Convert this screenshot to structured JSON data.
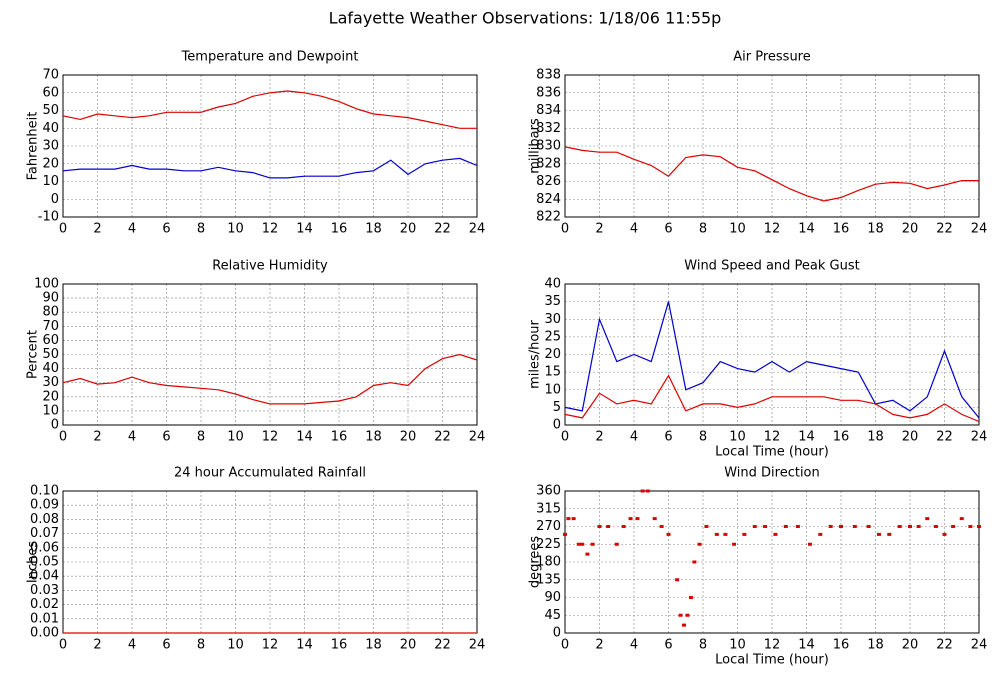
{
  "title": "Lafayette Weather Observations: 1/18/06 11:55p",
  "chart_data": [
    {
      "type": "line",
      "title": "Temperature and Dewpoint",
      "ylabel": "Fahrenheit",
      "x": [
        0,
        1,
        2,
        3,
        4,
        5,
        6,
        7,
        8,
        9,
        10,
        11,
        12,
        13,
        14,
        15,
        16,
        17,
        18,
        19,
        20,
        21,
        22,
        23,
        24
      ],
      "series": [
        {
          "color": "#dd0000",
          "values": [
            47,
            45,
            48,
            47,
            46,
            47,
            49,
            49,
            49,
            52,
            54,
            58,
            60,
            61,
            60,
            58,
            55,
            51,
            48,
            47,
            46,
            44,
            42,
            40,
            40
          ]
        },
        {
          "color": "#0000cc",
          "values": [
            16,
            17,
            17,
            17,
            19,
            17,
            17,
            16,
            16,
            18,
            16,
            15,
            12,
            12,
            13,
            13,
            13,
            15,
            16,
            22,
            14,
            20,
            22,
            23,
            19
          ]
        }
      ],
      "xlim": [
        0,
        24
      ],
      "xticks": [
        0,
        2,
        4,
        6,
        8,
        10,
        12,
        14,
        16,
        18,
        20,
        22,
        24
      ],
      "ylim": [
        -10,
        70
      ],
      "yticks": [
        -10,
        0,
        10,
        20,
        30,
        40,
        50,
        60,
        70
      ],
      "grid": true
    },
    {
      "type": "line",
      "title": "Air Pressure",
      "ylabel": "millibars",
      "x": [
        0,
        1,
        2,
        3,
        4,
        5,
        6,
        7,
        8,
        9,
        10,
        11,
        12,
        13,
        14,
        15,
        16,
        17,
        18,
        19,
        20,
        21,
        22,
        23,
        24
      ],
      "series": [
        {
          "color": "#dd0000",
          "values": [
            829.9,
            829.5,
            829.3,
            829.3,
            828.5,
            827.8,
            826.6,
            828.7,
            829.0,
            828.8,
            827.6,
            827.2,
            826.2,
            825.2,
            824.4,
            823.8,
            824.2,
            825.0,
            825.7,
            825.9,
            825.8,
            825.2,
            825.6,
            826.1,
            826.1
          ]
        }
      ],
      "xlim": [
        0,
        24
      ],
      "xticks": [
        0,
        2,
        4,
        6,
        8,
        10,
        12,
        14,
        16,
        18,
        20,
        22,
        24
      ],
      "ylim": [
        822,
        838
      ],
      "yticks": [
        822,
        824,
        826,
        828,
        830,
        832,
        834,
        836,
        838
      ],
      "grid": true
    },
    {
      "type": "line",
      "title": "Relative Humidity",
      "ylabel": "Percent",
      "x": [
        0,
        1,
        2,
        3,
        4,
        5,
        6,
        7,
        8,
        9,
        10,
        11,
        12,
        13,
        14,
        15,
        16,
        17,
        18,
        19,
        20,
        21,
        22,
        23,
        24
      ],
      "series": [
        {
          "color": "#dd0000",
          "values": [
            30,
            33,
            29,
            30,
            34,
            30,
            28,
            27,
            26,
            25,
            22,
            18,
            15,
            15,
            15,
            16,
            17,
            20,
            28,
            30,
            28,
            40,
            47,
            50,
            46
          ]
        }
      ],
      "xlim": [
        0,
        24
      ],
      "xticks": [
        0,
        2,
        4,
        6,
        8,
        10,
        12,
        14,
        16,
        18,
        20,
        22,
        24
      ],
      "ylim": [
        0,
        100
      ],
      "yticks": [
        0,
        10,
        20,
        30,
        40,
        50,
        60,
        70,
        80,
        90,
        100
      ],
      "grid": true
    },
    {
      "type": "line",
      "title": "Wind Speed and Peak Gust",
      "ylabel": "miles/hour",
      "xlabel": "Local Time (hour)",
      "x": [
        0,
        1,
        2,
        3,
        4,
        5,
        6,
        7,
        8,
        9,
        10,
        11,
        12,
        13,
        14,
        15,
        16,
        17,
        18,
        19,
        20,
        21,
        22,
        23,
        24
      ],
      "series": [
        {
          "color": "#0000cc",
          "values": [
            5,
            4,
            30,
            18,
            20,
            18,
            35,
            10,
            12,
            18,
            16,
            15,
            18,
            15,
            18,
            17,
            16,
            15,
            6,
            7,
            4,
            8,
            21,
            8,
            2
          ]
        },
        {
          "color": "#dd0000",
          "values": [
            3,
            2,
            9,
            6,
            7,
            6,
            14,
            4,
            6,
            6,
            5,
            6,
            8,
            8,
            8,
            8,
            7,
            7,
            6,
            3,
            2,
            3,
            6,
            3,
            1
          ]
        }
      ],
      "xlim": [
        0,
        24
      ],
      "xticks": [
        0,
        2,
        4,
        6,
        8,
        10,
        12,
        14,
        16,
        18,
        20,
        22,
        24
      ],
      "ylim": [
        0,
        40
      ],
      "yticks": [
        0,
        5,
        10,
        15,
        20,
        25,
        30,
        35,
        40
      ],
      "grid": true
    },
    {
      "type": "line",
      "title": "24 hour Accumulated Rainfall",
      "ylabel": "Inches",
      "x": [
        0,
        24
      ],
      "series": [
        {
          "color": "#dd0000",
          "values": [
            0,
            0
          ]
        }
      ],
      "xlim": [
        0,
        24
      ],
      "xticks": [
        0,
        2,
        4,
        6,
        8,
        10,
        12,
        14,
        16,
        18,
        20,
        22,
        24
      ],
      "ylim": [
        0,
        0.1
      ],
      "yticks": [
        {
          "value": 0,
          "label": "0.00"
        },
        0.01,
        0.02,
        0.03,
        0.04,
        0.05,
        0.06,
        0.07,
        0.08,
        0.09,
        {
          "value": 0.1,
          "label": "0.10"
        }
      ],
      "grid": true
    },
    {
      "type": "scatter",
      "title": "Wind Direction",
      "ylabel": "degrees",
      "xlabel": "Local Time (hour)",
      "x": [
        0,
        0.2,
        0.5,
        0.8,
        1.0,
        1.3,
        1.6,
        2.0,
        2.5,
        3.0,
        3.4,
        3.8,
        4.2,
        4.5,
        4.8,
        5.2,
        5.6,
        6.0,
        6.5,
        6.7,
        6.9,
        7.1,
        7.3,
        7.5,
        7.8,
        8.2,
        8.8,
        9.3,
        9.8,
        10.4,
        11.0,
        11.6,
        12.2,
        12.8,
        13.5,
        14.2,
        14.8,
        15.4,
        16.0,
        16.8,
        17.6,
        18.2,
        18.8,
        19.4,
        20.0,
        20.5,
        21.0,
        21.5,
        22.0,
        22.5,
        23.0,
        23.5,
        24.0
      ],
      "series": [
        {
          "color": "#dd0000",
          "values": [
            250,
            290,
            290,
            225,
            225,
            200,
            225,
            270,
            270,
            225,
            270,
            290,
            290,
            360,
            360,
            290,
            270,
            250,
            135,
            45,
            20,
            45,
            90,
            180,
            225,
            270,
            250,
            250,
            225,
            250,
            270,
            270,
            250,
            270,
            270,
            225,
            250,
            270,
            270,
            270,
            270,
            250,
            250,
            270,
            270,
            270,
            290,
            270,
            250,
            270,
            290,
            270,
            270
          ]
        }
      ],
      "xlim": [
        0,
        24
      ],
      "xticks": [
        0,
        2,
        4,
        6,
        8,
        10,
        12,
        14,
        16,
        18,
        20,
        22,
        24
      ],
      "ylim": [
        0,
        360
      ],
      "yticks": [
        0,
        45,
        90,
        135,
        180,
        225,
        270,
        315,
        360
      ],
      "grid": true
    }
  ]
}
